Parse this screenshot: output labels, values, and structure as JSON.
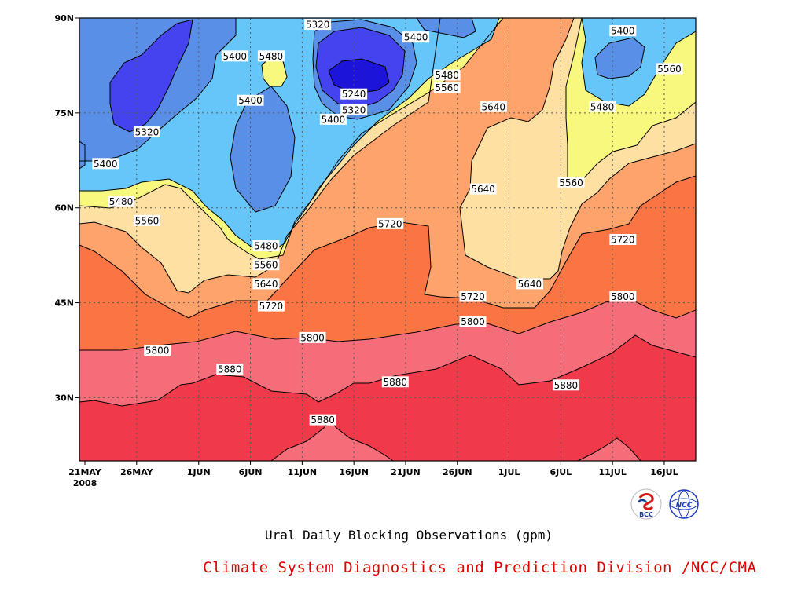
{
  "chart_data": {
    "type": "contour",
    "title": "Ural Daily Blocking Observations (gpm)",
    "footer": "Climate System Diagnostics and Prediction Division /NCC/CMA",
    "y_ticks": [
      {
        "lat": 30,
        "label": "30N"
      },
      {
        "lat": 45,
        "label": "45N"
      },
      {
        "lat": 60,
        "label": "60N"
      },
      {
        "lat": 75,
        "label": "75N"
      },
      {
        "lat": 90,
        "label": "90N"
      }
    ],
    "x_ticks": [
      {
        "day": 0,
        "label": "21MAY",
        "sub": "2008"
      },
      {
        "day": 5,
        "label": "26MAY",
        "sub": ""
      },
      {
        "day": 11,
        "label": "1JUN",
        "sub": ""
      },
      {
        "day": 16,
        "label": "6JUN",
        "sub": ""
      },
      {
        "day": 21,
        "label": "11JUN",
        "sub": ""
      },
      {
        "day": 26,
        "label": "16JUN",
        "sub": ""
      },
      {
        "day": 31,
        "label": "21JUN",
        "sub": ""
      },
      {
        "day": 36,
        "label": "26JUN",
        "sub": ""
      },
      {
        "day": 41,
        "label": "1JUL",
        "sub": ""
      },
      {
        "day": 46,
        "label": "6JUL",
        "sub": ""
      },
      {
        "day": 51,
        "label": "11JUL",
        "sub": ""
      },
      {
        "day": 56,
        "label": "16JUL",
        "sub": ""
      }
    ],
    "x_range": [
      "2008-05-20",
      "2008-07-16"
    ],
    "y_range": [
      20,
      90
    ],
    "grid": true,
    "levels": [
      5240,
      5320,
      5400,
      5480,
      5560,
      5640,
      5720,
      5800,
      5880
    ],
    "fill_colors": [
      "#1c14d8",
      "#4444ee",
      "#5a8fe8",
      "#66c6fa",
      "#f8f77e",
      "#fde0a2",
      "#fda36b",
      "#fb7443",
      "#f66d7a",
      "#f03a4a"
    ],
    "contour_labels": [
      {
        "value": "5240",
        "day": 26,
        "lat": 78
      },
      {
        "value": "5320",
        "day": 6,
        "lat": 72
      },
      {
        "value": "5320",
        "day": 22.5,
        "lat": 89
      },
      {
        "value": "5320",
        "day": 26,
        "lat": 75.5
      },
      {
        "value": "5400",
        "day": 2,
        "lat": 67
      },
      {
        "value": "5400",
        "day": 14.5,
        "lat": 84
      },
      {
        "value": "5400",
        "day": 16,
        "lat": 77
      },
      {
        "value": "5400",
        "day": 24,
        "lat": 74
      },
      {
        "value": "5400",
        "day": 32,
        "lat": 87
      },
      {
        "value": "5400",
        "day": 52,
        "lat": 88
      },
      {
        "value": "5480",
        "day": 3.5,
        "lat": 61
      },
      {
        "value": "5480",
        "day": 18,
        "lat": 84
      },
      {
        "value": "5480",
        "day": 17.5,
        "lat": 54
      },
      {
        "value": "5480",
        "day": 35,
        "lat": 81
      },
      {
        "value": "5480",
        "day": 50,
        "lat": 76
      },
      {
        "value": "5560",
        "day": 6,
        "lat": 58
      },
      {
        "value": "5560",
        "day": 17.5,
        "lat": 51
      },
      {
        "value": "5560",
        "day": 35,
        "lat": 79
      },
      {
        "value": "5560",
        "day": 47,
        "lat": 64
      },
      {
        "value": "5560",
        "day": 56.5,
        "lat": 82
      },
      {
        "value": "5640",
        "day": 17.5,
        "lat": 48
      },
      {
        "value": "5640",
        "day": 39.5,
        "lat": 76
      },
      {
        "value": "5640",
        "day": 38.5,
        "lat": 63
      },
      {
        "value": "5640",
        "day": 43,
        "lat": 48
      },
      {
        "value": "5720",
        "day": 18,
        "lat": 44.5
      },
      {
        "value": "5720",
        "day": 29.5,
        "lat": 57.5
      },
      {
        "value": "5720",
        "day": 37.5,
        "lat": 46
      },
      {
        "value": "5720",
        "day": 52,
        "lat": 55
      },
      {
        "value": "5800",
        "day": 7,
        "lat": 37.5
      },
      {
        "value": "5800",
        "day": 22,
        "lat": 39.5
      },
      {
        "value": "5800",
        "day": 37.5,
        "lat": 42
      },
      {
        "value": "5800",
        "day": 52,
        "lat": 46
      },
      {
        "value": "5880",
        "day": 14,
        "lat": 34.5
      },
      {
        "value": "5880",
        "day": 30,
        "lat": 32.5
      },
      {
        "value": "5880",
        "day": 23,
        "lat": 26.5
      },
      {
        "value": "5880",
        "day": 46.5,
        "lat": 32
      }
    ]
  },
  "logos": {
    "left": {
      "name": "bcc-logo",
      "text": "BCC"
    },
    "right": {
      "name": "ncc-logo",
      "text": "NCC"
    }
  }
}
